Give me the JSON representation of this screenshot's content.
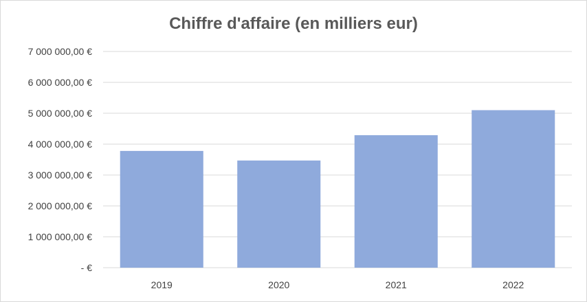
{
  "chart_data": {
    "type": "bar",
    "title": "Chiffre d'affaire (en milliers eur)",
    "categories": [
      "2019",
      "2020",
      "2021",
      "2022"
    ],
    "values": [
      3780000,
      3470000,
      4290000,
      5100000
    ],
    "ylim": [
      0,
      7000000
    ],
    "y_ticks": [
      0,
      1000000,
      2000000,
      3000000,
      4000000,
      5000000,
      6000000,
      7000000
    ],
    "y_tick_labels": [
      "-   €",
      "1 000 000,00   €",
      "2 000 000,00   €",
      "3 000 000,00   €",
      "4 000 000,00   €",
      "5 000 000,00   €",
      "6 000 000,00   €",
      "7 000 000,00   €"
    ],
    "xlabel": "",
    "ylabel": "",
    "grid": true,
    "legend": "none",
    "colors": {
      "bar": "#8faadc",
      "grid": "#d9d9d9",
      "title": "#595959",
      "text": "#404040"
    }
  }
}
